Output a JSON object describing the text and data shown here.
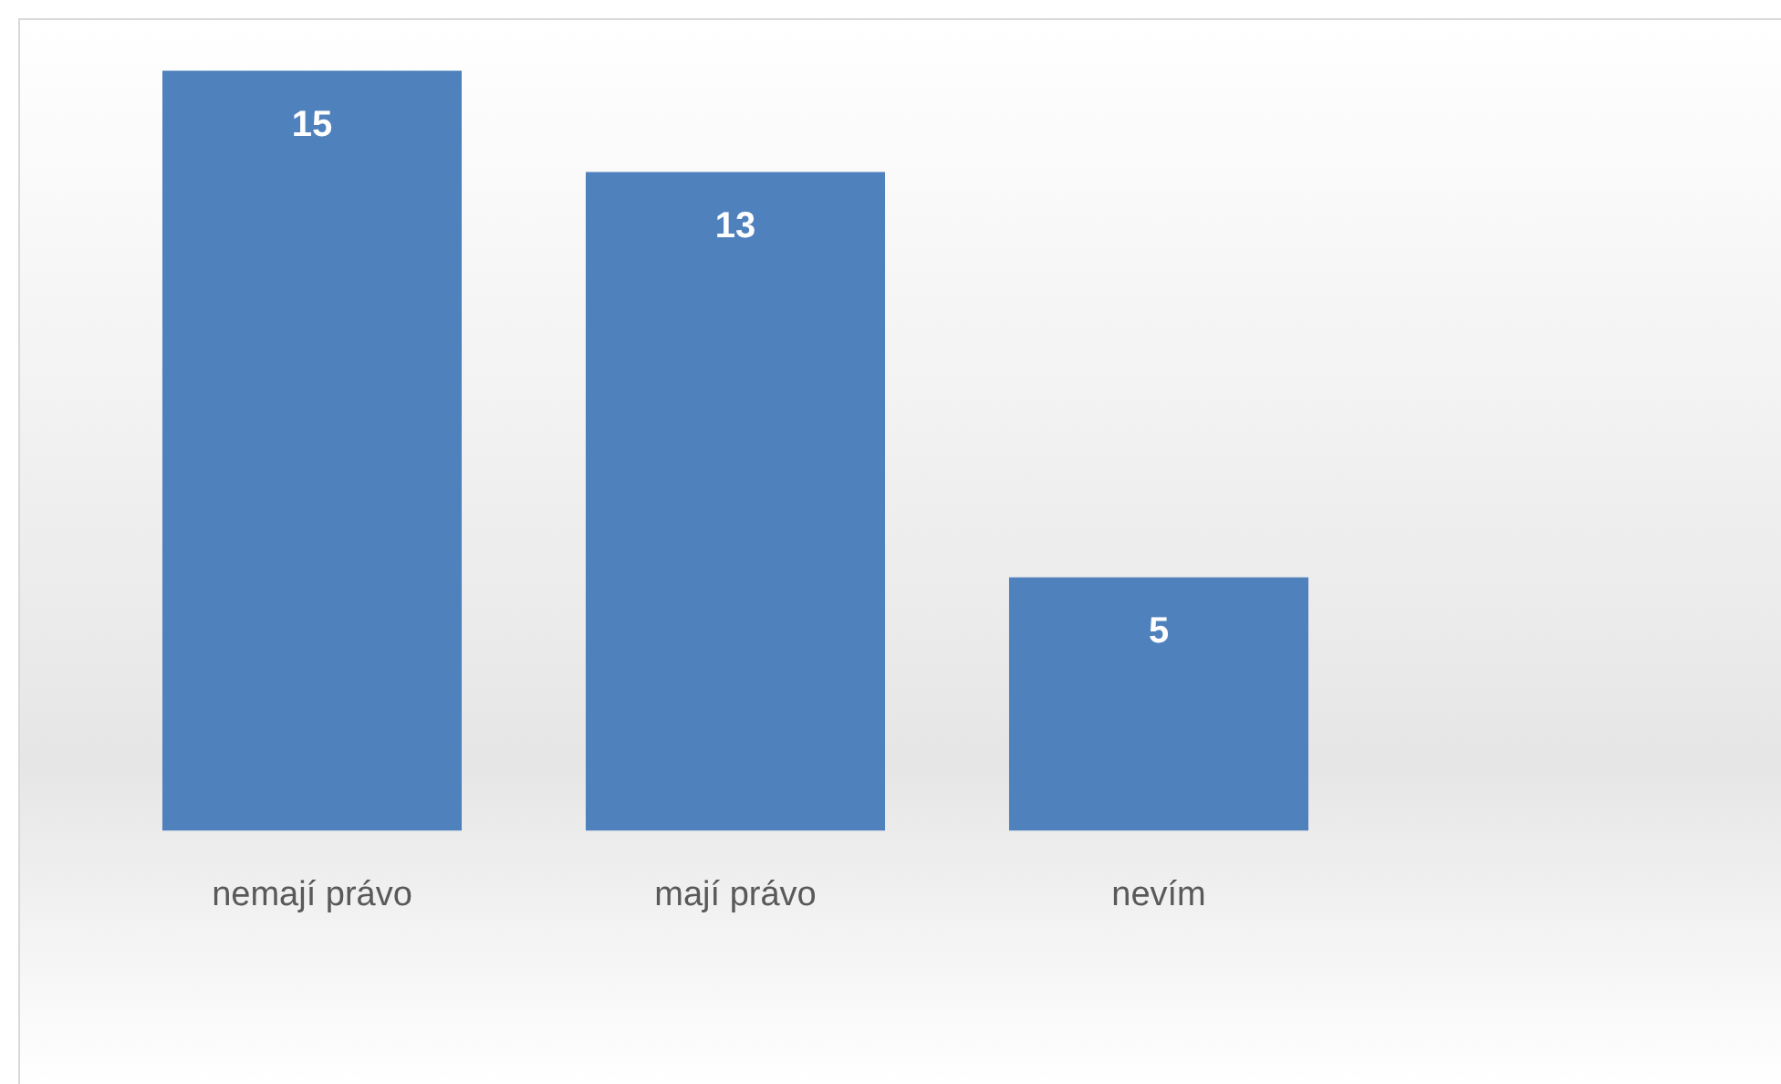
{
  "chart_data": {
    "type": "bar",
    "categories": [
      "nemají právo",
      "mají právo",
      "nevím"
    ],
    "values": [
      15,
      13,
      5
    ],
    "color": "#4f81bd",
    "data_labels": true,
    "grid": false,
    "legend": false
  }
}
